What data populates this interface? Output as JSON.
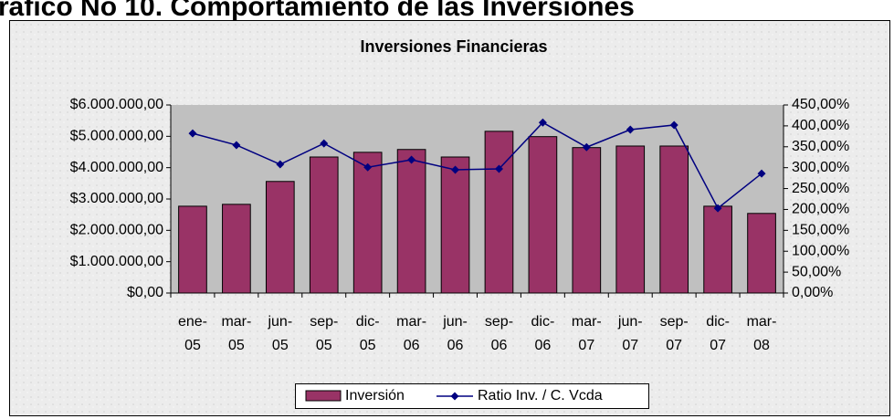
{
  "heading": "ráfico No 10. Comportamiento de las Inversiones",
  "chart_data": {
    "type": "bar",
    "title": "Inversiones Financieras",
    "categories": [
      "ene-05",
      "mar-05",
      "jun-05",
      "sep-05",
      "dic-05",
      "mar-06",
      "jun-06",
      "sep-06",
      "dic-06",
      "mar-07",
      "jun-07",
      "sep-07",
      "dic-07",
      "mar-08"
    ],
    "series": [
      {
        "name": "Inversión",
        "type": "bar",
        "color": "#993366",
        "values": [
          2770000,
          2830000,
          3560000,
          4340000,
          4490000,
          4580000,
          4340000,
          5160000,
          4990000,
          4640000,
          4690000,
          4690000,
          2770000,
          2540000
        ]
      },
      {
        "name": "Ratio Inv. / C. Vcda",
        "type": "line",
        "axis": "y2",
        "color": "#000080",
        "values": [
          382,
          354,
          308,
          358,
          301,
          319,
          295,
          297,
          408,
          349,
          391,
          402,
          203,
          286
        ]
      }
    ],
    "ylim": [
      0,
      6000000
    ],
    "yticks": [
      {
        "value": 0,
        "label": "$0,00"
      },
      {
        "value": 1000000,
        "label": "$1.000.000,00"
      },
      {
        "value": 2000000,
        "label": "$2.000.000,00"
      },
      {
        "value": 3000000,
        "label": "$3.000.000,00"
      },
      {
        "value": 4000000,
        "label": "$4.000.000,00"
      },
      {
        "value": 5000000,
        "label": "$5.000.000,00"
      },
      {
        "value": 6000000,
        "label": "$6.000.000,00"
      }
    ],
    "y2lim": [
      0,
      450
    ],
    "y2ticks": [
      {
        "value": 0,
        "label": "0,00%"
      },
      {
        "value": 50,
        "label": "50,00%"
      },
      {
        "value": 100,
        "label": "100,00%"
      },
      {
        "value": 150,
        "label": "150,00%"
      },
      {
        "value": 200,
        "label": "200,00%"
      },
      {
        "value": 250,
        "label": "250,00%"
      },
      {
        "value": 300,
        "label": "300,00%"
      },
      {
        "value": 350,
        "label": "350,00%"
      },
      {
        "value": 400,
        "label": "400,00%"
      },
      {
        "value": 450,
        "label": "450,00%"
      }
    ],
    "grid": false,
    "legend": "bottom"
  }
}
